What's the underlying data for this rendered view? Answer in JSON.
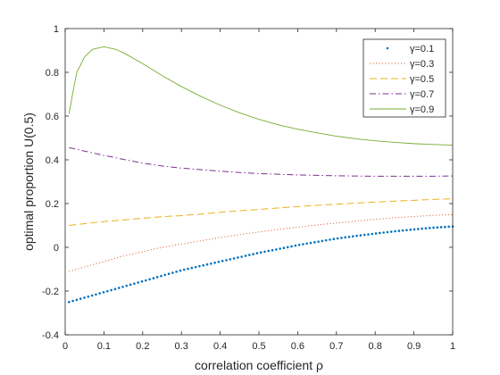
{
  "chart_data": {
    "type": "line",
    "xlabel": "correlation coefficient ρ",
    "ylabel": "optimal proportion U(0.5)",
    "xlim": [
      0,
      1
    ],
    "ylim": [
      -0.4,
      1
    ],
    "xticks": [
      "0",
      "0.1",
      "0.2",
      "0.3",
      "0.4",
      "0.5",
      "0.6",
      "0.7",
      "0.8",
      "0.9",
      "1"
    ],
    "yticks": [
      "-0.4",
      "-0.2",
      "0",
      "0.2",
      "0.4",
      "0.6",
      "0.8",
      "1"
    ],
    "grid": false,
    "legend_position": "top-right",
    "x": [
      0.01,
      0.02,
      0.03,
      0.05,
      0.07,
      0.1,
      0.13,
      0.15,
      0.2,
      0.25,
      0.3,
      0.35,
      0.4,
      0.45,
      0.5,
      0.55,
      0.6,
      0.65,
      0.7,
      0.75,
      0.8,
      0.85,
      0.9,
      0.95,
      1.0
    ],
    "series": [
      {
        "name": "γ=0.1",
        "style": "dots",
        "color": "#0072BD",
        "values": [
          -0.25,
          -0.245,
          -0.24,
          -0.23,
          -0.22,
          -0.205,
          -0.19,
          -0.18,
          -0.155,
          -0.13,
          -0.105,
          -0.085,
          -0.065,
          -0.045,
          -0.025,
          -0.008,
          0.01,
          0.025,
          0.04,
          0.052,
          0.063,
          0.073,
          0.082,
          0.09,
          0.095
        ]
      },
      {
        "name": "γ=0.3",
        "style": "dotted",
        "color": "#D95319",
        "values": [
          -0.11,
          -0.105,
          -0.1,
          -0.09,
          -0.08,
          -0.065,
          -0.05,
          -0.04,
          -0.02,
          0.0,
          0.015,
          0.03,
          0.045,
          0.058,
          0.07,
          0.082,
          0.092,
          0.102,
          0.111,
          0.12,
          0.128,
          0.135,
          0.141,
          0.146,
          0.15
        ]
      },
      {
        "name": "γ=0.5",
        "style": "dashed",
        "color": "#EDB120",
        "values": [
          0.1,
          0.102,
          0.104,
          0.108,
          0.112,
          0.118,
          0.122,
          0.125,
          0.133,
          0.14,
          0.145,
          0.152,
          0.16,
          0.167,
          0.173,
          0.18,
          0.186,
          0.192,
          0.197,
          0.202,
          0.207,
          0.211,
          0.215,
          0.219,
          0.222
        ]
      },
      {
        "name": "γ=0.7",
        "style": "dashdot",
        "color": "#7E2F8E",
        "values": [
          0.455,
          0.452,
          0.448,
          0.44,
          0.432,
          0.42,
          0.41,
          0.402,
          0.385,
          0.372,
          0.362,
          0.355,
          0.348,
          0.342,
          0.337,
          0.334,
          0.331,
          0.329,
          0.327,
          0.326,
          0.325,
          0.325,
          0.325,
          0.325,
          0.326
        ]
      },
      {
        "name": "γ=0.9",
        "style": "solid",
        "color": "#77AC30",
        "values": [
          0.61,
          0.71,
          0.8,
          0.87,
          0.905,
          0.917,
          0.905,
          0.89,
          0.84,
          0.785,
          0.735,
          0.69,
          0.65,
          0.615,
          0.585,
          0.56,
          0.54,
          0.523,
          0.508,
          0.496,
          0.487,
          0.48,
          0.474,
          0.47,
          0.467
        ]
      }
    ]
  }
}
